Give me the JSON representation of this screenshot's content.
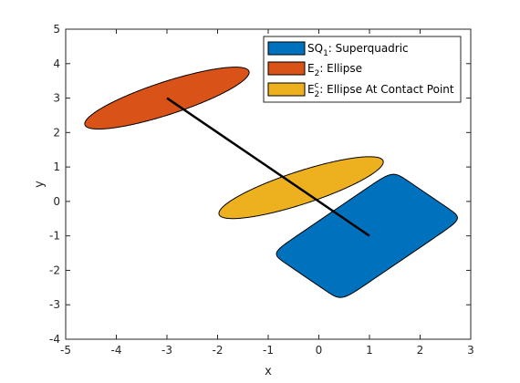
{
  "chart_data": {
    "type": "scatter",
    "title": "",
    "xlabel": "x",
    "ylabel": "y",
    "xlim": [
      -5,
      3
    ],
    "ylim": [
      -4,
      5
    ],
    "xticks": [
      -5,
      -4,
      -3,
      -2,
      -1,
      0,
      1,
      2,
      3
    ],
    "yticks": [
      -4,
      -3,
      -2,
      -1,
      0,
      1,
      2,
      3,
      4,
      5
    ],
    "grid": false,
    "legend_position": "top-right",
    "series": [
      {
        "name": "SQ1: Superquadric",
        "label_main": "SQ",
        "label_sub": "1",
        "label_rest": ": Superquadric",
        "shape": "superquadric",
        "color": "#0072BD",
        "center": [
          0.95,
          -1.0
        ],
        "semi_axes": [
          1.7,
          0.98
        ],
        "angle_deg": 45,
        "exponent": 0.18
      },
      {
        "name": "E2: Ellipse",
        "label_main": "E",
        "label_sub": "2",
        "label_rest": ": Ellipse",
        "shape": "ellipse",
        "color": "#D95319",
        "center": [
          -3.0,
          3.0
        ],
        "semi_axes": [
          1.8,
          0.45
        ],
        "angle_deg": 26.5
      },
      {
        "name": "E2c: Ellipse At Contact Point",
        "label_main": "E",
        "label_sub": "2",
        "label_sup": "c",
        "label_rest": ": Ellipse At Contact Point",
        "shape": "ellipse",
        "color": "#EDB120",
        "center": [
          -0.35,
          0.4
        ],
        "semi_axes": [
          1.8,
          0.45
        ],
        "angle_deg": 26.5
      }
    ],
    "line": {
      "x": [
        -3,
        1
      ],
      "y": [
        3,
        -1
      ],
      "color": "#000000"
    }
  }
}
